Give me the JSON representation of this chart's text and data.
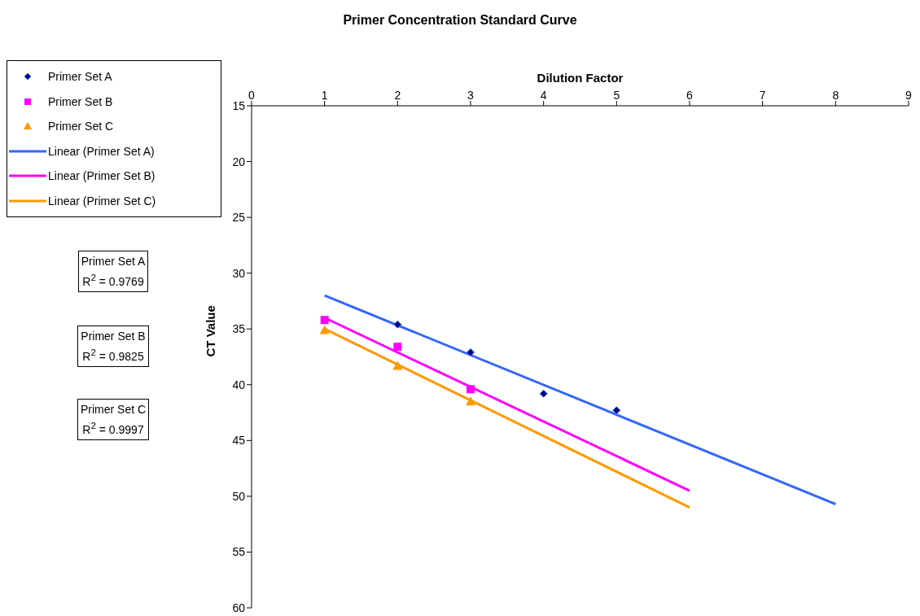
{
  "chart_data": {
    "type": "scatter",
    "title": "Primer Concentration Standard Curve",
    "xlabel": "Dilution Factor",
    "ylabel": "CT Value",
    "xlim": [
      0,
      9
    ],
    "xticks": [
      0,
      1,
      2,
      3,
      4,
      5,
      6,
      7,
      8,
      9
    ],
    "ylim": [
      60,
      15
    ],
    "yticks": [
      15,
      20,
      25,
      30,
      35,
      40,
      45,
      50,
      55,
      60
    ],
    "grid": false,
    "legend": "top left",
    "series": [
      {
        "name": "Primer Set A",
        "color": "#000080",
        "marker": "diamond",
        "x": [
          2,
          3,
          4,
          5
        ],
        "values": [
          34.6,
          37.1,
          40.8,
          42.3
        ]
      },
      {
        "name": "Primer Set B",
        "color": "#ff00ff",
        "marker": "square",
        "x": [
          1,
          2,
          3
        ],
        "values": [
          34.2,
          36.6,
          40.4
        ]
      },
      {
        "name": "Primer Set C",
        "color": "#ff9900",
        "marker": "triangle",
        "x": [
          1,
          2,
          3
        ],
        "values": [
          35.1,
          38.3,
          41.5
        ]
      },
      {
        "type": "line",
        "name": "Linear (Primer Set A)",
        "color": "#3366ff",
        "marker": "none",
        "x": [
          1,
          8
        ],
        "values": [
          32.0,
          50.7
        ]
      },
      {
        "type": "line",
        "name": "Linear (Primer Set B)",
        "color": "#ff00ff",
        "marker": "none",
        "x": [
          1,
          6
        ],
        "values": [
          34.0,
          49.5
        ]
      },
      {
        "type": "line",
        "name": "Linear (Primer Set C)",
        "color": "#ff9900",
        "marker": "none",
        "x": [
          1,
          6
        ],
        "values": [
          35.0,
          51.0
        ]
      }
    ],
    "annotations": [
      "Primer Set A\nR$^{2}$ = 0.9769",
      "Primer Set B\nR$^{2}$ = 0.9825",
      "Primer Set C\nR$^{2}$ = 0.9997"
    ]
  }
}
